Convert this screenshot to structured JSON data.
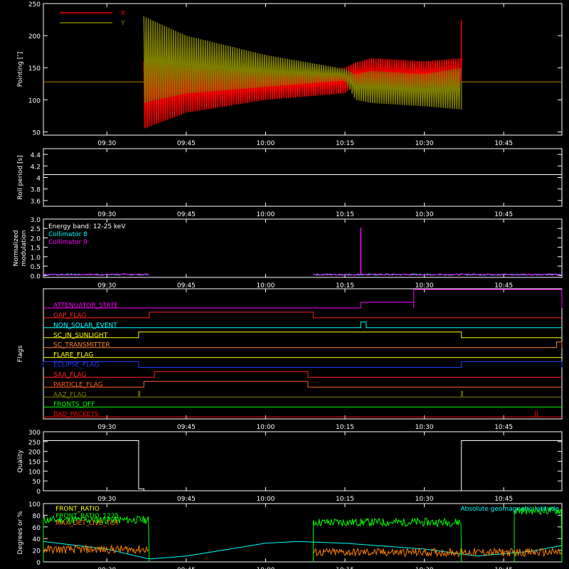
{
  "chart_data": [
    {
      "id": "pointing",
      "type": "line",
      "ylabel": "Pointing [″]",
      "ylim": [
        45,
        250
      ],
      "yticks": [
        50,
        100,
        150,
        200,
        250
      ],
      "x_ticks": [
        "09:30",
        "09:45",
        "10:00",
        "10:15",
        "10:30",
        "10:45"
      ],
      "series": [
        {
          "name": "X",
          "color": "#ff0000",
          "baseline": 128,
          "envelope_x": [
            "09:37",
            "09:45",
            "10:00",
            "10:15",
            "10:17",
            "10:20",
            "10:30",
            "10:37"
          ],
          "upper": [
            160,
            150,
            145,
            150,
            158,
            165,
            160,
            165
          ],
          "lower": [
            55,
            80,
            100,
            110,
            125,
            115,
            120,
            120
          ],
          "spike": {
            "x": "10:37",
            "value": 225
          }
        },
        {
          "name": "Y",
          "color": "#7f7f00",
          "baseline": 128,
          "envelope_x": [
            "09:37",
            "09:45",
            "10:00",
            "10:15",
            "10:17",
            "10:20",
            "10:30",
            "10:37"
          ],
          "upper": [
            230,
            200,
            170,
            148,
            140,
            145,
            140,
            150
          ],
          "lower": [
            95,
            110,
            120,
            130,
            100,
            95,
            90,
            85
          ],
          "spike": {
            "x": "10:37",
            "value": 85
          }
        }
      ]
    },
    {
      "id": "roll",
      "type": "line",
      "ylabel": "Roll period [s]",
      "ylim": [
        3.5,
        4.5
      ],
      "yticks": [
        3.6,
        3.8,
        4.0,
        4.2,
        4.4
      ],
      "x_ticks": [
        "09:30",
        "09:45",
        "10:00",
        "10:15",
        "10:30",
        "10:45"
      ],
      "series": [
        {
          "name": "",
          "color": "#ffffff",
          "value": 4.05
        }
      ]
    },
    {
      "id": "modulation",
      "type": "line",
      "ylabel": [
        "Normalized",
        "modulation"
      ],
      "ylim": [
        -0.1,
        3.0
      ],
      "yticks": [
        0.0,
        0.5,
        1.0,
        1.5,
        2.0,
        2.5,
        3.0
      ],
      "yticklabels": [
        "0.0",
        "0.5",
        "1.0",
        "1.5",
        "2.0",
        "2.5",
        "3.0"
      ],
      "x_ticks": [
        "09:30",
        "09:45",
        "10:00",
        "10:15",
        "10:30",
        "10:45"
      ],
      "legend": [
        {
          "label": "Energy band: 12-25 keV",
          "color": "#ffffff"
        },
        {
          "label": "Collimator 8",
          "color": "#00ffff"
        },
        {
          "label": "Collimator 9",
          "color": "#ff00ff"
        }
      ],
      "segments": [
        [
          "09:18",
          "09:38"
        ],
        [
          "10:09",
          "10:56"
        ]
      ],
      "level": 0.05,
      "spike": {
        "x": "10:18",
        "value": 2.55
      }
    },
    {
      "id": "flags",
      "type": "line",
      "ylabel": "Flags",
      "x_ticks": [
        "09:30",
        "09:45",
        "10:00",
        "10:15",
        "10:30",
        "10:45"
      ],
      "flags": [
        {
          "name": "ATTENUATOR_STATE",
          "color": "#ff00ff",
          "hi": [
            [
              "10:18",
              "10:28"
            ],
            [
              "10:28",
              "10:56"
            ]
          ],
          "steps2": [
            [
              "10:28",
              "10:56"
            ]
          ]
        },
        {
          "name": "GAP_FLAG",
          "color": "#ff2020",
          "hi": [
            [
              "09:38",
              "10:09"
            ]
          ]
        },
        {
          "name": "NON_SOLAR_EVENT",
          "color": "#00ffff",
          "hi": [
            [
              "10:18",
              "10:19"
            ]
          ]
        },
        {
          "name": "SC_IN_SUNLIGHT",
          "color": "#ffff00",
          "hi": [
            [
              "09:36",
              "10:37"
            ]
          ]
        },
        {
          "name": "SC_TRANSMITTER",
          "color": "#ff8030",
          "hi": [
            [
              "10:55",
              "10:56"
            ]
          ]
        },
        {
          "name": "FLARE_FLAG",
          "color": "#ffff00",
          "hi": []
        },
        {
          "name": "ECLIPSE_FLAG",
          "color": "#2040ff",
          "hi": [
            [
              "09:18",
              "09:36"
            ],
            [
              "10:37",
              "10:56"
            ]
          ]
        },
        {
          "name": "SAA_FLAG",
          "color": "#ff2020",
          "hi": [
            [
              "09:39",
              "10:08"
            ]
          ]
        },
        {
          "name": "PARTICLE_FLAG",
          "color": "#ff6020",
          "hi": [
            [
              "09:37",
              "10:08"
            ]
          ]
        },
        {
          "name": "AAZ_FLAG",
          "color": "#808000",
          "hi": [
            [
              "09:36",
              "09:36"
            ],
            [
              "10:37",
              "10:37"
            ]
          ]
        },
        {
          "name": "FRONTS_OFF",
          "color": "#00ff00",
          "hi": []
        },
        {
          "name": "BAD_PACKETS",
          "color": "#ff0000",
          "hi": [],
          "ticks": [
            "10:51"
          ]
        }
      ]
    },
    {
      "id": "quality",
      "type": "line",
      "ylabel": "Quality",
      "ylim": [
        0,
        300
      ],
      "yticks": [
        0,
        50,
        100,
        150,
        200,
        250,
        300
      ],
      "x_ticks": [
        "09:30",
        "09:45",
        "10:00",
        "10:15",
        "10:30",
        "10:45"
      ],
      "series": [
        {
          "name": "",
          "color": "#ffffff",
          "x": [
            "09:18",
            "09:36",
            "09:36",
            "09:37",
            "09:37",
            "10:37",
            "10:37",
            "10:56"
          ],
          "y": [
            255,
            255,
            10,
            10,
            0,
            0,
            255,
            255
          ]
        }
      ]
    },
    {
      "id": "geo",
      "type": "line",
      "ylabel": "Degrees or %",
      "ylim": [
        0,
        100
      ],
      "yticks": [
        0,
        20,
        40,
        60,
        80,
        100
      ],
      "x_ticks": [
        "09:30",
        "09:45",
        "10:00",
        "10:15",
        "10:30",
        "10:45"
      ],
      "legend": [
        {
          "label": "FRONT_RATIO",
          "color": "#ffff00"
        },
        {
          "label": "FRONT_RATIO_1225",
          "color": "#00ff00"
        },
        {
          "label": "MAX_DET_LIVE_TOT",
          "color": "#ff8000"
        }
      ],
      "right_label": {
        "label": "Absolute geomagnetic latitude",
        "color": "#00ffff"
      },
      "latitude": {
        "x": [
          "09:18",
          "09:30",
          "09:38",
          "09:45",
          "10:00",
          "10:06",
          "10:15",
          "10:30",
          "10:40",
          "10:50",
          "10:56"
        ],
        "y": [
          35,
          22,
          5,
          10,
          32,
          35,
          32,
          22,
          10,
          18,
          28
        ]
      },
      "front_ratio": {
        "segments": [
          [
            "09:18",
            "09:38",
            72
          ],
          [
            "10:09",
            "10:37",
            68
          ],
          [
            "10:47",
            "10:56",
            88
          ]
        ]
      },
      "max_det": {
        "segments": [
          [
            "09:18",
            "09:38",
            20
          ],
          [
            "10:09",
            "10:56",
            15
          ]
        ]
      }
    }
  ]
}
